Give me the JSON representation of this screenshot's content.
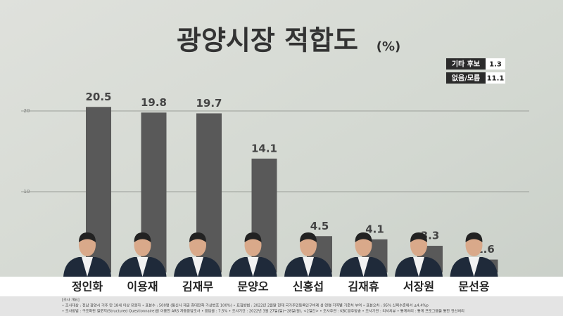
{
  "chart_data": {
    "type": "bar",
    "title": "광양시장 적합도",
    "unit": "(%)",
    "categories": [
      "정인화",
      "이용재",
      "김재무",
      "문양오",
      "신홍섭",
      "김재휴",
      "서장원",
      "문선용"
    ],
    "values": [
      20.5,
      19.8,
      19.7,
      14.1,
      4.5,
      4.1,
      3.3,
      1.6
    ],
    "color": "#595959",
    "ylim": [
      0,
      25
    ],
    "yticks": [
      10,
      20
    ],
    "grid": true,
    "others": [
      {
        "label": "기타 후보",
        "value": 1.3
      },
      {
        "label": "없음/모름",
        "value": 11.1
      }
    ],
    "notes": [
      "[조사 개요]",
      "• 조사대상 : 전남 광양시 거주 만 18세 이상 유권자   • 표본수 : 500명 (통신사 제공 휴대전화 가상번호 100%)   • 표집방법 : 2022년 2월말 현재 국가주민등록인구비례 성·연령·지역별 기준치 부여   • 표본오차 : 95% 신뢰수준에서 ±4.4%p",
      "• 조사방법 : 구조화된 질문지(Structured Questionnaire)를 이용한 ARS 자동응답조사   • 응답률 : 7.5%   • 조사기간 : 2022년 3월 27일(일)~28일(월), <2일간>   • 조사주관 : KBC광주방송   • 조사기관 : 리서치뷰   • 통계처리 : 통계 프로그램을 통한 전산처리"
    ]
  }
}
